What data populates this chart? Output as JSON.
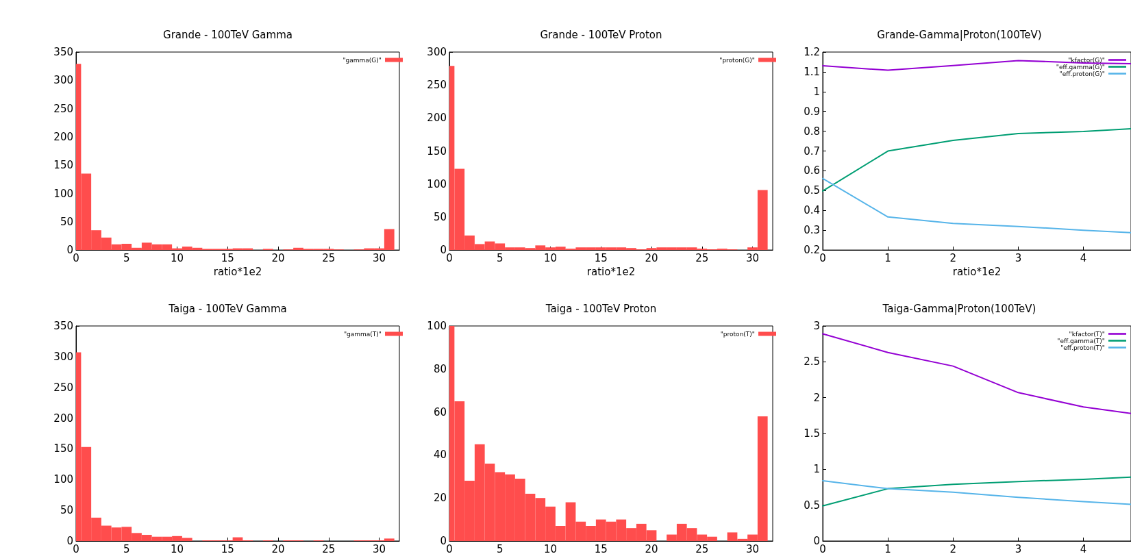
{
  "chart_data": [
    {
      "type": "histogram",
      "title": "Grande - 100TeV Gamma",
      "xlabel": "ratio*1e2",
      "bins": [
        0,
        0.5,
        1.5,
        2.5,
        3.5,
        4.5,
        5.5,
        6.5,
        7.5,
        8.5,
        9.5,
        10.5,
        11.5,
        12.5,
        13.5,
        14.5,
        15.5,
        16.5,
        17.5,
        18.5,
        19.5,
        20.5,
        21.5,
        22.5,
        23.5,
        24.5,
        25.5,
        26.5,
        27.5,
        28.5,
        29.5,
        30.5,
        31.5
      ],
      "series": [
        {
          "name": "\"gamma(G)\"",
          "color": "#ff4d4d",
          "values": [
            329,
            135,
            35,
            22,
            10,
            11,
            4,
            13,
            10,
            10,
            3,
            6,
            4,
            2,
            2,
            2,
            3,
            3,
            0,
            2,
            0,
            1,
            4,
            2,
            2,
            2,
            1,
            0,
            1,
            3,
            3,
            37
          ]
        }
      ],
      "xlim": [
        0,
        32
      ],
      "xticks": [
        0,
        5,
        10,
        15,
        20,
        25,
        30
      ],
      "ylim": [
        0,
        350
      ],
      "yticks": [
        0,
        50,
        100,
        150,
        200,
        250,
        300,
        350
      ],
      "legend": "top right",
      "grid": false
    },
    {
      "type": "histogram",
      "title": "Grande - 100TeV Proton",
      "xlabel": "ratio*1e2",
      "bins": [
        0,
        0.5,
        1.5,
        2.5,
        3.5,
        4.5,
        5.5,
        6.5,
        7.5,
        8.5,
        9.5,
        10.5,
        11.5,
        12.5,
        13.5,
        14.5,
        15.5,
        16.5,
        17.5,
        18.5,
        19.5,
        20.5,
        21.5,
        22.5,
        23.5,
        24.5,
        25.5,
        26.5,
        27.5,
        28.5,
        29.5,
        30.5,
        31.5
      ],
      "series": [
        {
          "name": "\"proton(G)\"",
          "color": "#ff4d4d",
          "values": [
            279,
            123,
            22,
            9,
            13,
            10,
            4,
            4,
            3,
            7,
            4,
            5,
            2,
            4,
            4,
            4,
            4,
            4,
            3,
            1,
            3,
            4,
            4,
            4,
            4,
            2,
            1,
            2,
            1,
            0,
            4,
            91
          ]
        }
      ],
      "xlim": [
        0,
        32
      ],
      "xticks": [
        0,
        5,
        10,
        15,
        20,
        25,
        30
      ],
      "ylim": [
        0,
        300
      ],
      "yticks": [
        0,
        50,
        100,
        150,
        200,
        250,
        300
      ],
      "legend": "top right",
      "grid": false
    },
    {
      "type": "line",
      "title": "Grande-Gamma|Proton(100TeV)",
      "xlabel": "ratio*1e2",
      "x": [
        0,
        1,
        2,
        3,
        4,
        4.73
      ],
      "series": [
        {
          "name": "\"kfactor(G)\"",
          "color": "#9400d3",
          "values": [
            1.131,
            1.108,
            1.132,
            1.157,
            1.145,
            1.141
          ]
        },
        {
          "name": "\"eff.gamma(G)\"",
          "color": "#009e73",
          "values": [
            0.498,
            0.7,
            0.754,
            0.788,
            0.799,
            0.813
          ]
        },
        {
          "name": "\"eff.proton(G)\"",
          "color": "#56b4e9",
          "values": [
            0.561,
            0.367,
            0.334,
            0.319,
            0.3,
            0.288
          ]
        }
      ],
      "xlim": [
        0,
        4.73
      ],
      "xticks": [
        0,
        1,
        2,
        3,
        4
      ],
      "ylim": [
        0.2,
        1.2
      ],
      "yticks": [
        0.2,
        0.3,
        0.4,
        0.5,
        0.6,
        0.7,
        0.8,
        0.9,
        1,
        1.1,
        1.2
      ],
      "legend": "top right",
      "grid": false,
      "marker": "none",
      "line_style": "solid"
    },
    {
      "type": "histogram",
      "title": "Taiga - 100TeV Gamma",
      "bins": [
        0,
        0.5,
        1.5,
        2.5,
        3.5,
        4.5,
        5.5,
        6.5,
        7.5,
        8.5,
        9.5,
        10.5,
        11.5,
        12.5,
        13.5,
        14.5,
        15.5,
        16.5,
        17.5,
        18.5,
        19.5,
        20.5,
        21.5,
        22.5,
        23.5,
        24.5,
        27.5,
        28.5,
        29.5,
        30.5,
        31.5
      ],
      "series": [
        {
          "name": "\"gamma(T)\"",
          "color": "#ff4d4d",
          "values": [
            307,
            153,
            38,
            25,
            22,
            23,
            13,
            10,
            7,
            7,
            8,
            5,
            0,
            1,
            1,
            1,
            6,
            1,
            0,
            1,
            0,
            1,
            1,
            0,
            1,
            0,
            1,
            1,
            1,
            4
          ]
        }
      ],
      "xlim": [
        0,
        32
      ],
      "xticks": [
        0,
        5,
        10,
        15,
        20,
        25,
        30
      ],
      "ylim": [
        0,
        350
      ],
      "yticks": [
        0,
        50,
        100,
        150,
        200,
        250,
        300,
        350
      ],
      "legend": "top right",
      "grid": false
    },
    {
      "type": "histogram",
      "title": "Taiga - 100TeV Proton",
      "bins": [
        0,
        0.5,
        1.5,
        2.5,
        3.5,
        4.5,
        5.5,
        6.5,
        7.5,
        8.5,
        9.5,
        10.5,
        11.5,
        12.5,
        13.5,
        14.5,
        15.5,
        16.5,
        17.5,
        18.5,
        19.5,
        20.5,
        21.5,
        22.5,
        23.5,
        24.5,
        25.5,
        26.5,
        27.5,
        28.5,
        29.5,
        30.5,
        31.5
      ],
      "series": [
        {
          "name": "\"proton(T)\"",
          "color": "#ff4d4d",
          "values": [
            100,
            65,
            28,
            45,
            36,
            32,
            31,
            29,
            22,
            20,
            16,
            7,
            18,
            9,
            7,
            10,
            9,
            10,
            6,
            8,
            5,
            0,
            3,
            8,
            6,
            3,
            2,
            0,
            4,
            1,
            3,
            58
          ]
        }
      ],
      "xlim": [
        0,
        32
      ],
      "xticks": [
        0,
        5,
        10,
        15,
        20,
        25,
        30
      ],
      "ylim": [
        0,
        100
      ],
      "yticks": [
        0,
        20,
        40,
        60,
        80,
        100
      ],
      "legend": "top right",
      "grid": false
    },
    {
      "type": "line",
      "title": "Taiga-Gamma|Proton(100TeV)",
      "x": [
        0,
        1,
        2,
        3,
        4,
        4.73
      ],
      "series": [
        {
          "name": "\"kfactor(T)\"",
          "color": "#9400d3",
          "values": [
            2.89,
            2.63,
            2.44,
            2.07,
            1.87,
            1.78
          ]
        },
        {
          "name": "\"eff.gamma(T)\"",
          "color": "#009e73",
          "values": [
            0.49,
            0.73,
            0.79,
            0.83,
            0.86,
            0.89
          ]
        },
        {
          "name": "\"eff.proton(T)\"",
          "color": "#56b4e9",
          "values": [
            0.84,
            0.73,
            0.68,
            0.61,
            0.55,
            0.51
          ]
        }
      ],
      "xlim": [
        0,
        4.73
      ],
      "xticks": [
        0,
        1,
        2,
        3,
        4
      ],
      "ylim": [
        0,
        3
      ],
      "yticks": [
        0,
        0.5,
        1,
        1.5,
        2,
        2.5,
        3
      ],
      "legend": "top right",
      "grid": false,
      "marker": "none",
      "line_style": "solid"
    }
  ]
}
